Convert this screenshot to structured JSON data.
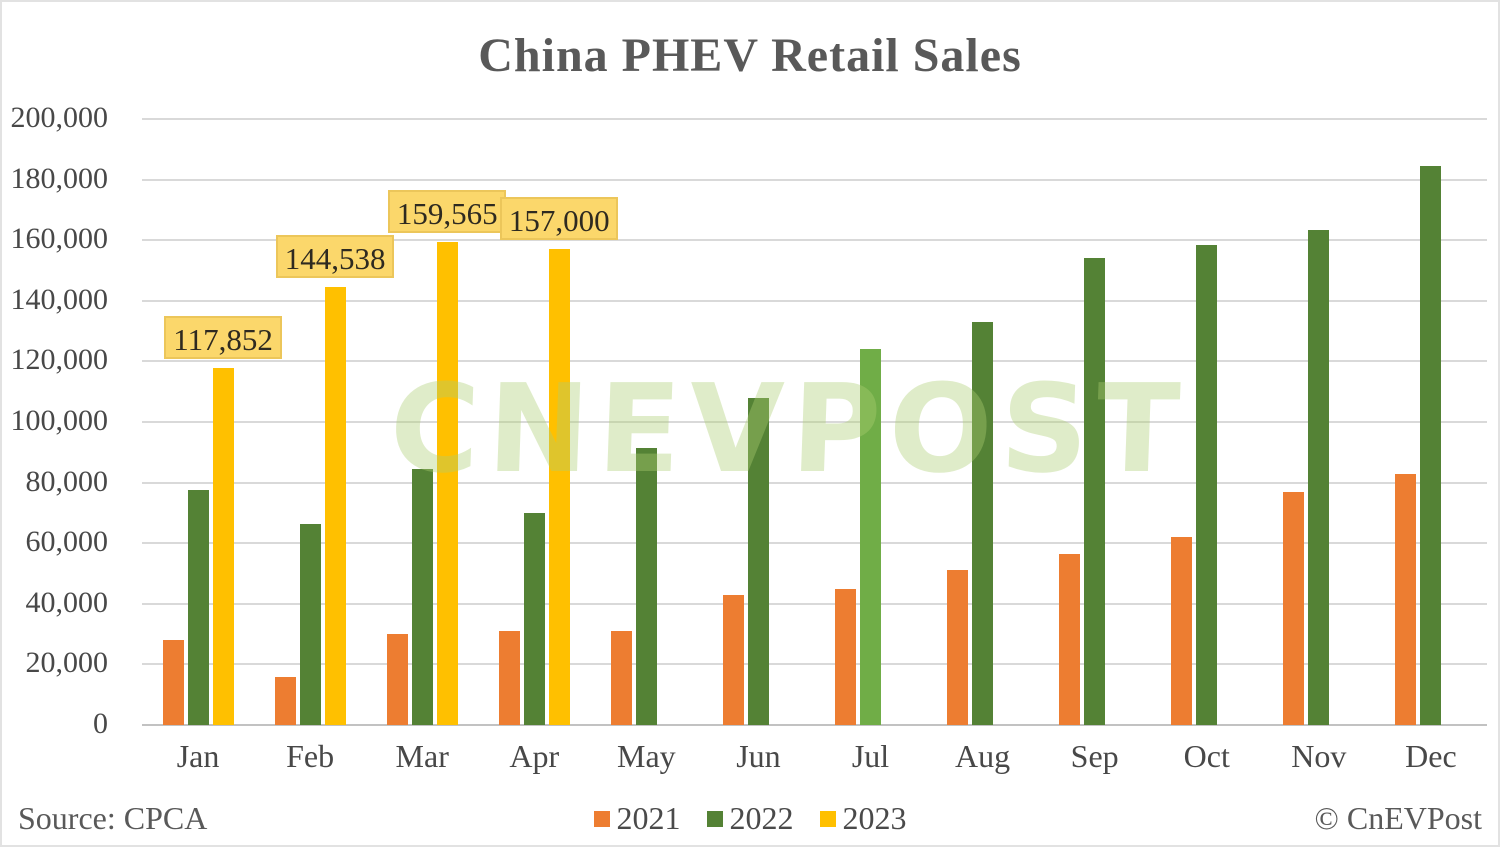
{
  "title": "China PHEV Retail Sales",
  "watermark": "CNEVPOST",
  "footer": {
    "source": "Source: CPCA",
    "credit": "© CnEVPost"
  },
  "colors": {
    "series_2021": "#ED7D31",
    "series_2022": "#548235",
    "series_2022_jul_highlight": "#70AD47",
    "series_2023": "#FFC000",
    "callout_bg": "#FBD76B",
    "callout_border": "#ECC65A",
    "gridline": "#D9D9D9",
    "title_text": "#595959",
    "axis_text": "#484848",
    "watermark_green": "#AECF73"
  },
  "chart_data": {
    "type": "bar",
    "title": "China PHEV Retail Sales",
    "categories": [
      "Jan",
      "Feb",
      "Mar",
      "Apr",
      "May",
      "Jun",
      "Jul",
      "Aug",
      "Sep",
      "Oct",
      "Nov",
      "Dec"
    ],
    "series": [
      {
        "name": "2021",
        "color": "#ED7D31",
        "values": [
          28000,
          16000,
          30000,
          31000,
          31000,
          43000,
          45000,
          51000,
          56500,
          62000,
          77000,
          83000
        ]
      },
      {
        "name": "2022",
        "color": "#548235",
        "values": [
          77500,
          66500,
          84500,
          70000,
          91500,
          108000,
          124000,
          133000,
          154000,
          158500,
          163500,
          184500
        ],
        "point_colors": {
          "Jul": "#70AD47"
        }
      },
      {
        "name": "2023",
        "color": "#FFC000",
        "values": [
          117852,
          144538,
          159565,
          157000,
          null,
          null,
          null,
          null,
          null,
          null,
          null,
          null
        ],
        "data_labels": [
          {
            "category": "Jan",
            "text": "117,852"
          },
          {
            "category": "Feb",
            "text": "144,538"
          },
          {
            "category": "Mar",
            "text": "159,565"
          },
          {
            "category": "Apr",
            "text": "157,000"
          }
        ]
      }
    ],
    "ylim": [
      0,
      200000
    ],
    "ytick_step": 20000,
    "ytick_labels": [
      "0",
      "20,000",
      "40,000",
      "60,000",
      "80,000",
      "100,000",
      "120,000",
      "140,000",
      "160,000",
      "180,000",
      "200,000"
    ],
    "xlabel": "",
    "ylabel": "",
    "grid": true,
    "legend_position": "bottom"
  }
}
